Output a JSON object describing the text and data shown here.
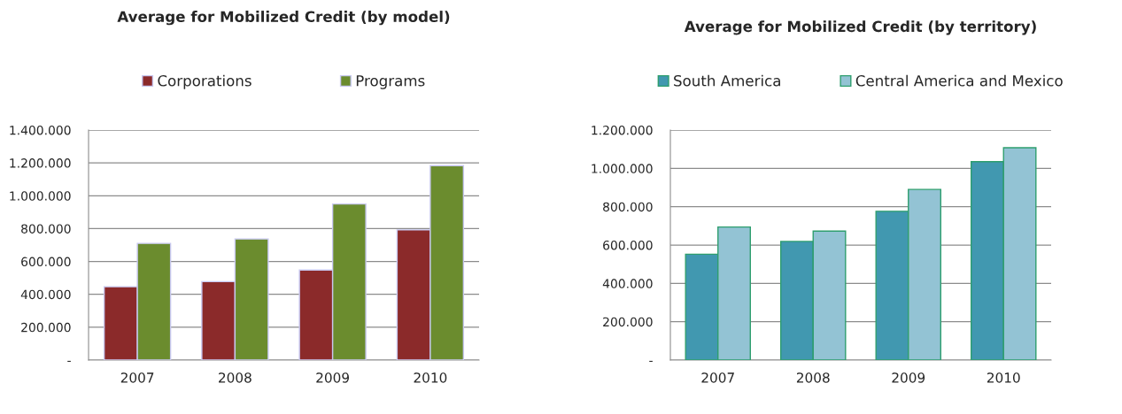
{
  "chart_data": [
    {
      "type": "bar",
      "title": "Average for Mobilized Credit (by model)",
      "categories": [
        "2007",
        "2008",
        "2009",
        "2010"
      ],
      "series": [
        {
          "name": "Corporations",
          "color": "#8b2a2a",
          "values": [
            446000,
            477000,
            548000,
            792000
          ]
        },
        {
          "name": "Programs",
          "color": "#6b8c2e",
          "values": [
            710000,
            737000,
            950000,
            1183000
          ]
        }
      ],
      "ylim": [
        0,
        1400000
      ],
      "yticks": [
        {
          "value": 0,
          "label": "-"
        },
        {
          "value": 200000,
          "label": "200.000"
        },
        {
          "value": 400000,
          "label": "400.000"
        },
        {
          "value": 600000,
          "label": "600.000"
        },
        {
          "value": 800000,
          "label": "800.000"
        },
        {
          "value": 1000000,
          "label": "1.000.000"
        },
        {
          "value": 1200000,
          "label": "1.200.000"
        },
        {
          "value": 1400000,
          "label": "1.400.000"
        }
      ],
      "grid": "y",
      "legend": "top"
    },
    {
      "type": "bar",
      "title": "Average for Mobilized Credit (by territory)",
      "categories": [
        "2007",
        "2008",
        "2009",
        "2010"
      ],
      "series": [
        {
          "name": "South America",
          "color": "#4198b0",
          "values": [
            552000,
            619000,
            776000,
            1035000
          ]
        },
        {
          "name": "Central America and Mexico",
          "color": "#93c3d4",
          "values": [
            694000,
            673000,
            890000,
            1108000
          ]
        }
      ],
      "ylim": [
        0,
        1200000
      ],
      "yticks": [
        {
          "value": 0,
          "label": "-"
        },
        {
          "value": 200000,
          "label": "200.000"
        },
        {
          "value": 400000,
          "label": "400.000"
        },
        {
          "value": 600000,
          "label": "600.000"
        },
        {
          "value": 800000,
          "label": "800.000"
        },
        {
          "value": 1000000,
          "label": "1.000.000"
        },
        {
          "value": 1200000,
          "label": "1.200.000"
        }
      ],
      "grid": "y",
      "legend": "top"
    }
  ]
}
